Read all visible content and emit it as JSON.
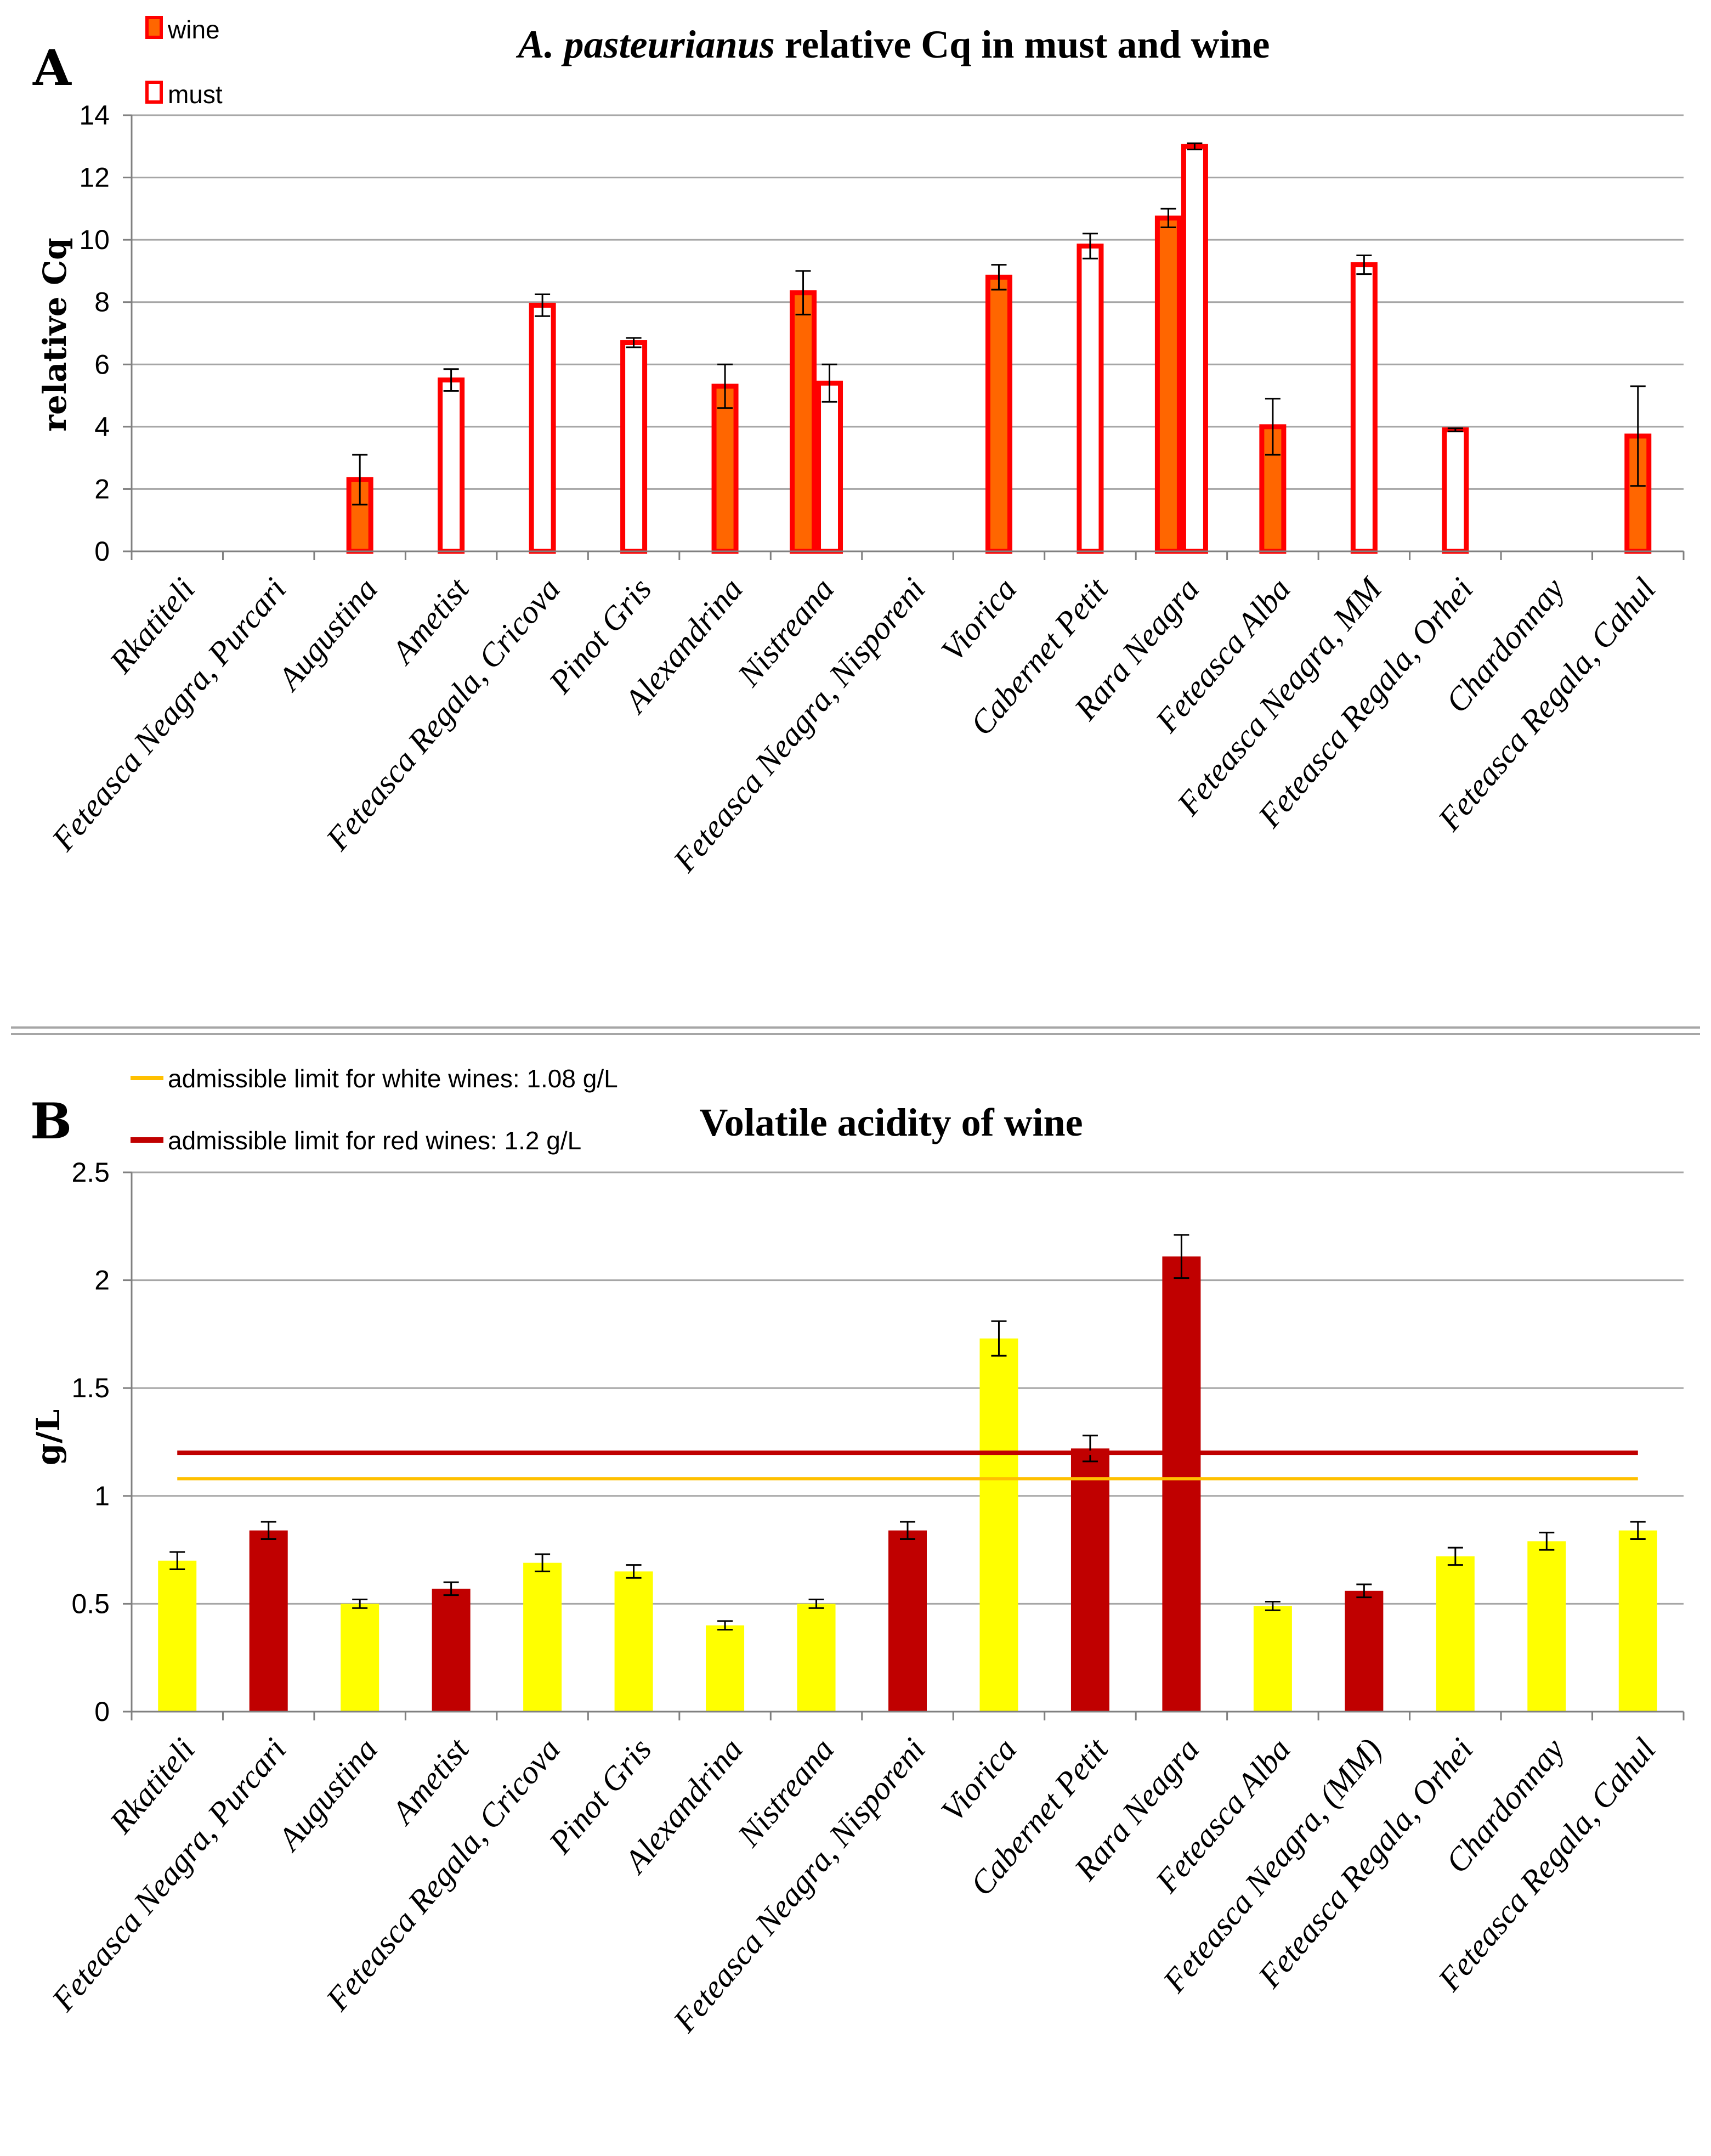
{
  "chart_data": [
    {
      "panel": "A",
      "type": "bar",
      "title_italic": "A. pasteurianus",
      "title_rest": " relative Cq in must and wine",
      "xlabel": "",
      "ylabel": "relative Cq",
      "ylim": [
        0,
        14
      ],
      "yticks": [
        "0",
        "2",
        "4",
        "6",
        "8",
        "10",
        "12",
        "14"
      ],
      "legend_position": "top-left",
      "categories": [
        "Rkatiteli",
        "Feteasca Neagra, Purcari",
        "Augustina",
        "Ametist",
        "Feteasca Regala, Cricova",
        "Pinot Gris",
        "Alexandrina",
        "Nistreana",
        "Feteasca Neagra, Nisporeni",
        "Viorica",
        "Cabernet Petit",
        "Rara Neagra",
        "Feteasca Alba",
        "Feteasca Neagra, MM",
        "Feteasca Regala, Orhei",
        "Chardonnay",
        "Feteasca Regala, Cahul"
      ],
      "series": [
        {
          "name": "wine",
          "fill": "#ff6600",
          "stroke": "#ff0000",
          "values": [
            null,
            null,
            2.3,
            null,
            null,
            null,
            5.3,
            8.3,
            null,
            8.8,
            null,
            10.7,
            4.0,
            null,
            null,
            null,
            3.7
          ],
          "errors": [
            null,
            null,
            0.8,
            null,
            null,
            null,
            0.7,
            0.7,
            null,
            0.4,
            null,
            0.3,
            0.9,
            null,
            null,
            null,
            1.6
          ]
        },
        {
          "name": "must",
          "fill": "#ffffff",
          "stroke": "#ff0000",
          "values": [
            null,
            null,
            null,
            5.5,
            7.9,
            6.7,
            null,
            5.4,
            null,
            null,
            9.8,
            13.0,
            null,
            9.2,
            3.9,
            null,
            null
          ],
          "errors": [
            null,
            null,
            null,
            0.35,
            0.35,
            0.15,
            null,
            0.6,
            null,
            null,
            0.4,
            0.1,
            null,
            0.3,
            0.05,
            null,
            null
          ]
        }
      ]
    },
    {
      "panel": "B",
      "type": "bar",
      "title": "Volatile acidity of wine",
      "xlabel": "",
      "ylabel": "g/L",
      "ylim": [
        0,
        2.5
      ],
      "yticks": [
        "0",
        "0.5",
        "1",
        "1.5",
        "2",
        "2.5"
      ],
      "legend_position": "top-left",
      "categories": [
        "Rkatiteli",
        "Feteasca Neagra, Purcari",
        "Augustina",
        "Ametist",
        "Feteasca Regala, Cricova",
        "Pinot Gris",
        "Alexandrina",
        "Nistreana",
        "Feteasca Neagra, Nisporeni",
        "Viorica",
        "Cabernet Petit",
        "Rara Neagra",
        "Feteasca Alba",
        "Feteasca Neagra, (MM)",
        "Feteasca Regala, Orhei",
        "Chardonnay",
        "Feteasca Regala, Cahul"
      ],
      "values": [
        0.7,
        0.84,
        0.5,
        0.57,
        0.69,
        0.65,
        0.4,
        0.5,
        0.84,
        1.73,
        1.22,
        2.11,
        0.49,
        0.56,
        0.72,
        0.79,
        0.84
      ],
      "errors": [
        0.04,
        0.04,
        0.02,
        0.03,
        0.04,
        0.03,
        0.02,
        0.02,
        0.04,
        0.08,
        0.06,
        0.1,
        0.02,
        0.03,
        0.04,
        0.04,
        0.04
      ],
      "wine_color": [
        "white",
        "red",
        "white",
        "red",
        "white",
        "white",
        "white",
        "white",
        "red",
        "white",
        "red",
        "red",
        "white",
        "red",
        "white",
        "white",
        "white"
      ],
      "colors": {
        "white": "#ffff00",
        "red": "#c00000"
      },
      "limits": [
        {
          "label": "admissible limit for white wines: 1.08 g/L",
          "value": 1.08,
          "color": "#ffc000"
        },
        {
          "label": "admissible limit for red wines: 1.2 g/L",
          "value": 1.2,
          "color": "#c00000"
        }
      ]
    }
  ]
}
